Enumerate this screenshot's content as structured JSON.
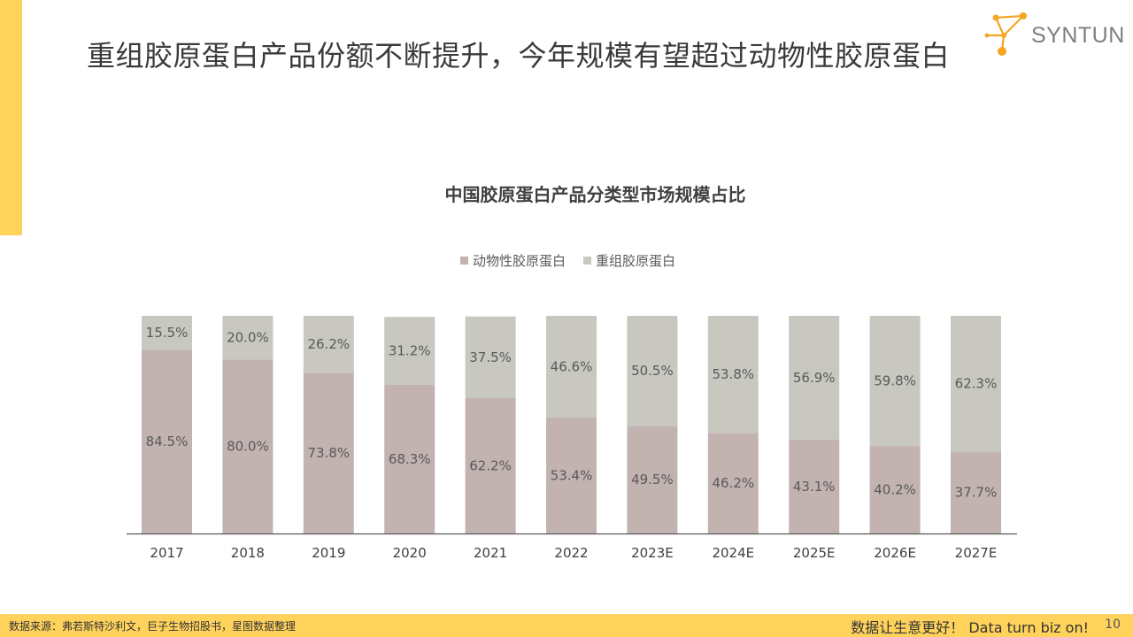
{
  "header": {
    "title": "重组胶原蛋白产品份额不断提升，今年规模有望超过动物性胶原蛋白",
    "logo_text": "SYNTUN"
  },
  "colors": {
    "accent": "#ffd25c",
    "animal": "#c2b3b1",
    "recombinant": "#c8c8c1",
    "logo_orange": "#f5a623"
  },
  "chart_data": {
    "type": "bar",
    "stacked": true,
    "percent_stacked": true,
    "title": "中国胶原蛋白产品分类型市场规模占比",
    "legend_position": "top",
    "categories": [
      "2017",
      "2018",
      "2019",
      "2020",
      "2021",
      "2022",
      "2023E",
      "2024E",
      "2025E",
      "2026E",
      "2027E"
    ],
    "series": [
      {
        "name": "动物性胶原蛋白",
        "values": [
          84.5,
          80.0,
          73.8,
          68.3,
          62.2,
          53.4,
          49.5,
          46.2,
          43.1,
          40.2,
          37.7
        ]
      },
      {
        "name": "重组胶原蛋白",
        "values": [
          15.5,
          20.0,
          26.2,
          31.2,
          37.5,
          46.6,
          50.5,
          53.8,
          56.9,
          59.8,
          62.3
        ]
      }
    ],
    "value_format": "percent_1dp",
    "ylim": [
      0,
      100
    ],
    "grid": false
  },
  "footer": {
    "source": "数据来源：弗若斯特沙利文，巨子生物招股书，星图数据整理",
    "slogan": "数据让生意更好！ Data  turn  biz  on!",
    "page": "10"
  }
}
